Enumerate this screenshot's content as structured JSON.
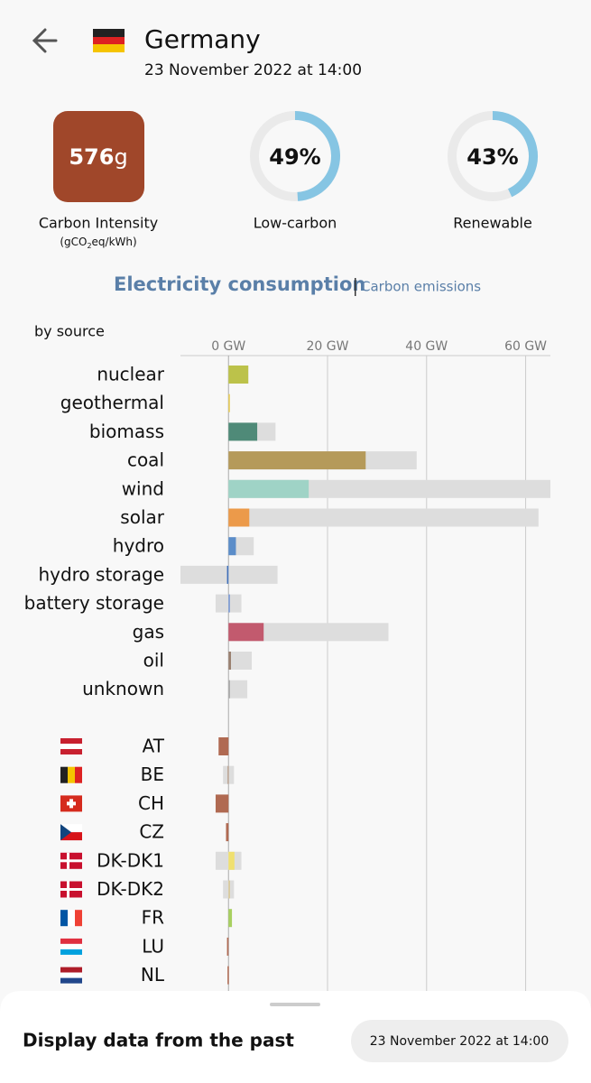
{
  "header": {
    "country": "Germany",
    "datetime": "23 November 2022 at 14:00"
  },
  "stats": {
    "carbon_intensity": {
      "value": 576,
      "unit": "g",
      "label": "Carbon Intensity",
      "unit_note": [
        "(gCO",
        "2",
        "eq/kWh)"
      ],
      "color": "#a0472a"
    },
    "low_carbon": {
      "value": 49,
      "value_label": "49%",
      "label": "Low-carbon",
      "color": "#86c5e3"
    },
    "renewable": {
      "value": 43,
      "value_label": "43%",
      "label": "Renewable",
      "color": "#86c5e3"
    }
  },
  "tabs": {
    "active": "Electricity consumption",
    "inactive": "Carbon emissions"
  },
  "chart_data": [
    {
      "type": "bar",
      "subtitle": "by source",
      "categories": [
        "nuclear",
        "geothermal",
        "biomass",
        "coal",
        "wind",
        "solar",
        "hydro",
        "hydro storage",
        "battery storage",
        "gas",
        "oil",
        "unknown"
      ],
      "values": [
        4.0,
        0.05,
        5.8,
        27.7,
        16.2,
        4.2,
        1.5,
        -0.3,
        0,
        7.1,
        0.5,
        0.3
      ],
      "colors": [
        "#bcc24a",
        "#e6c84c",
        "#4f8a78",
        "#b59a5a",
        "#9fd3c6",
        "#ec9a4a",
        "#5b8dc9",
        "#3f6fb8",
        "#6d8fd0",
        "#c25a6e",
        "#9a8070",
        "#a8a8a8"
      ],
      "capacity_low": [
        0,
        0,
        0,
        0,
        0,
        0,
        0,
        -9.7,
        -2.6,
        0,
        0,
        0
      ],
      "capacity_high": [
        4.0,
        0.1,
        9.5,
        38.0,
        65.0,
        62.6,
        5.1,
        9.9,
        2.6,
        32.3,
        4.7,
        3.8
      ],
      "xlim": [
        -9.7,
        65
      ],
      "xticks": [
        {
          "value": 0,
          "label": "0 GW"
        },
        {
          "value": 20,
          "label": "20 GW"
        },
        {
          "value": 40,
          "label": "40 GW"
        },
        {
          "value": 60,
          "label": "60 GW"
        }
      ],
      "grid": true
    },
    {
      "type": "bar",
      "categories": [
        "AT",
        "BE",
        "CH",
        "CZ",
        "DK-DK1",
        "DK-DK2",
        "FR",
        "LU",
        "NL"
      ],
      "values": [
        -2.0,
        -0.2,
        -2.6,
        -0.5,
        1.2,
        0.3,
        0.7,
        -0.3,
        -0.2
      ],
      "colors": [
        "#b06a52",
        "#b8a090",
        "#b06a52",
        "#b06a52",
        "#f0e070",
        "#d8c898",
        "#a8d060",
        "#b06a52",
        "#b06a52"
      ],
      "capacity_low": [
        null,
        -1.1,
        null,
        null,
        -2.6,
        -1.1,
        null,
        null,
        null
      ],
      "capacity_high": [
        null,
        1.1,
        null,
        null,
        2.6,
        1.1,
        null,
        null,
        null
      ],
      "xlim": [
        -9.7,
        65
      ]
    }
  ],
  "footer": {
    "title": "Display data from the past",
    "datetime": "23 November 2022 at 14:00"
  }
}
